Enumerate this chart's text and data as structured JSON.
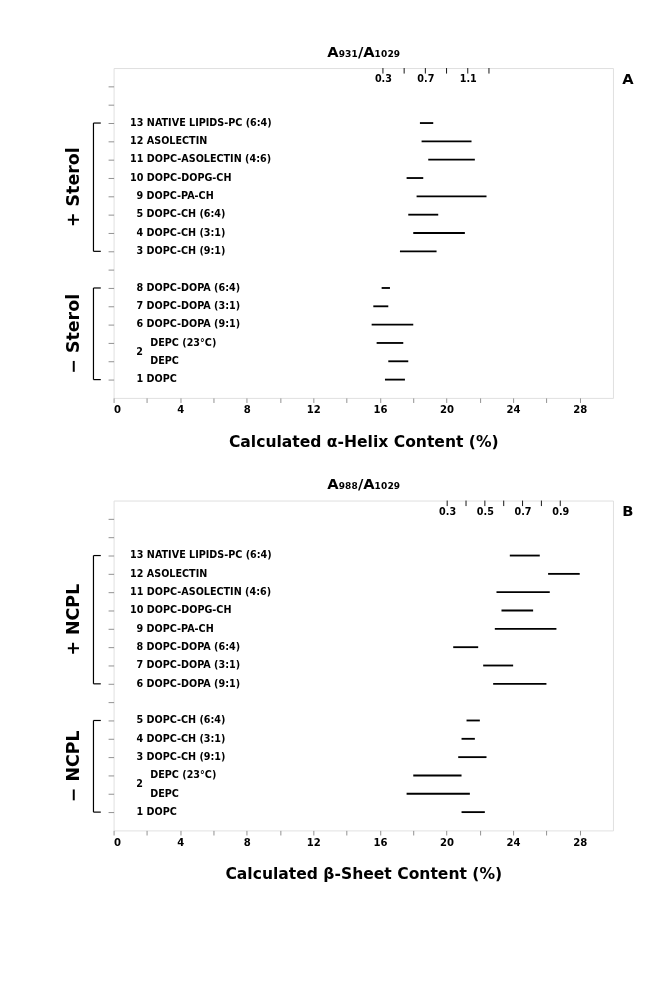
{
  "chart_data": [
    {
      "type": "bar",
      "orientation": "horizontal",
      "color": "#000000",
      "grid": false,
      "categories": [
        null,
        null,
        "13 NATIVE LIPIDS-PC (6:4)",
        "12 ASOLECTIN",
        "11 DOPC-ASOLECTIN (4:6)",
        "10 DOPC-DOPG-CH",
        "9 DOPC-PA-CH",
        "5 DOPC-CH (6:4)",
        "4 DOPC-CH (3:1)",
        "3 DOPC-CH (9:1)",
        null,
        "8 DOPC-DOPA (6:4)",
        "7 DOPC-DOPA (3:1)",
        "6 DOPC-DOPA (9:1)",
        "DEPC (23°C)",
        "DEPC",
        "1 DOPC"
      ],
      "base": [
        null,
        null,
        18.4,
        18.5,
        18.9,
        17.6,
        18.2,
        17.7,
        18.0,
        17.2,
        null,
        16.1,
        15.6,
        15.5,
        15.8,
        16.5,
        16.3
      ],
      "values": [
        null,
        null,
        0.8,
        3.0,
        2.8,
        1.0,
        4.2,
        1.8,
        3.1,
        2.2,
        null,
        0.5,
        0.9,
        2.5,
        1.6,
        1.2,
        1.2
      ],
      "xlim": [
        0,
        30
      ],
      "xticks": [
        0,
        {
          "value": 2,
          "label": null
        },
        4,
        {
          "value": 6,
          "label": null
        },
        8,
        {
          "value": 10,
          "label": null
        },
        12,
        {
          "value": 14,
          "label": null
        },
        16,
        {
          "value": 18,
          "label": null
        },
        20,
        {
          "value": 22,
          "label": null
        },
        24,
        {
          "value": 26,
          "label": null
        },
        28
      ],
      "xlabel": "Calculated α-Helix Content (%)",
      "x2label": "A₉₃₁/A₁₀₂₉",
      "x2lim": [
        -2.24,
        2.47
      ],
      "x2ticks": [
        0.3,
        {
          "value": 0.5,
          "label": null
        },
        0.7,
        {
          "value": 0.9,
          "label": null
        },
        1.1,
        {
          "value": 1.3,
          "label": null
        }
      ],
      "annotations": [
        "A",
        "2",
        "+ Sterol",
        "− Sterol"
      ]
    },
    {
      "type": "bar",
      "orientation": "horizontal",
      "color": "#000000",
      "grid": false,
      "categories": [
        null,
        null,
        "13 NATIVE LIPIDS-PC (6:4)",
        "12 ASOLECTIN",
        "11 DOPC-ASOLECTIN (4:6)",
        "10 DOPC-DOPG-CH",
        "9 DOPC-PA-CH",
        "8 DOPC-DOPA (6:4)",
        "7 DOPC-DOPA (3:1)",
        "6 DOPC-DOPA (9:1)",
        null,
        "5 DOPC-CH (6:4)",
        "4 DOPC-CH (3:1)",
        "3 DOPC-CH (9:1)",
        "DEPC (23°C)",
        "DEPC",
        "1 DOPC"
      ],
      "base": [
        null,
        null,
        23.8,
        26.1,
        23.0,
        23.3,
        22.9,
        20.4,
        22.2,
        22.8,
        null,
        21.2,
        20.9,
        20.7,
        18.0,
        17.6,
        20.9
      ],
      "values": [
        null,
        null,
        1.8,
        1.9,
        3.2,
        1.9,
        3.7,
        1.5,
        1.8,
        3.2,
        null,
        0.8,
        0.8,
        1.7,
        2.9,
        3.8,
        1.4
      ],
      "xlim": [
        0,
        30
      ],
      "xticks": [
        0,
        {
          "value": 2,
          "label": null
        },
        4,
        {
          "value": 6,
          "label": null
        },
        8,
        {
          "value": 10,
          "label": null
        },
        12,
        {
          "value": 14,
          "label": null
        },
        16,
        {
          "value": 18,
          "label": null
        },
        20,
        {
          "value": 22,
          "label": null
        },
        24,
        {
          "value": 26,
          "label": null
        },
        28
      ],
      "xlabel": "Calculated β-Sheet Content (%)",
      "x2label": "A₉₈₈/A₁₀₂₉",
      "x2lim": [
        -1.47,
        1.18
      ],
      "x2ticks": [
        0.3,
        {
          "value": 0.4,
          "label": null
        },
        0.5,
        {
          "value": 0.6,
          "label": null
        },
        0.7,
        {
          "value": 0.8,
          "label": null
        },
        0.9
      ],
      "annotations": [
        "B",
        "2",
        "+ NCPL",
        "− NCPL"
      ]
    }
  ]
}
